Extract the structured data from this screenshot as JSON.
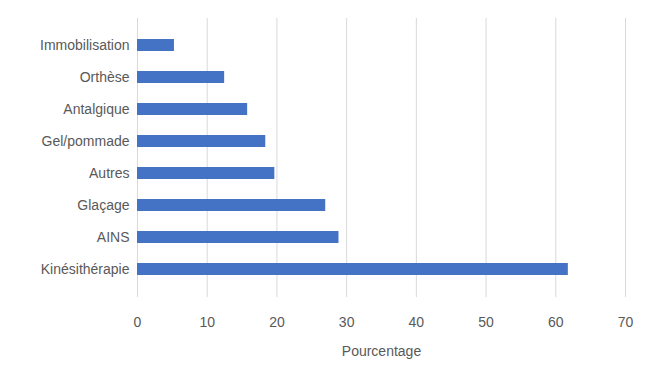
{
  "chart_data": {
    "type": "bar",
    "orientation": "horizontal",
    "categories": [
      "Immobilisation",
      "Orthèse",
      "Antalgique",
      "Gel/pommade",
      "Autres",
      "Glaçage",
      "AINS",
      "Kinésithérapie"
    ],
    "values": [
      5.3,
      12.5,
      15.8,
      18.4,
      19.7,
      27.0,
      28.9,
      61.8
    ],
    "color": "#4472c4",
    "x_label": "Pourcentage",
    "xlim": [
      0,
      70
    ],
    "xticks": [
      0,
      10,
      20,
      30,
      40,
      50,
      60,
      70
    ],
    "grid": true
  }
}
